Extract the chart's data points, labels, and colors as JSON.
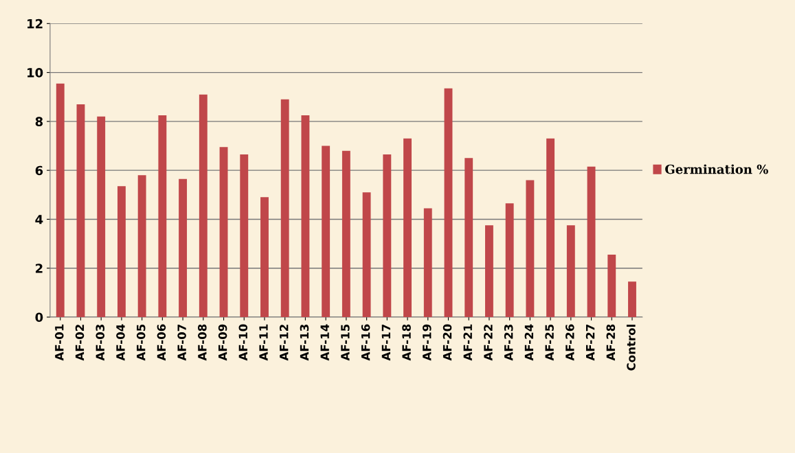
{
  "chart_data": {
    "type": "bar",
    "categories": [
      "AF-01",
      "AF-02",
      "AF-03",
      "AF-04",
      "AF-05",
      "AF-06",
      "AF-07",
      "AF-08",
      "AF-09",
      "AF-10",
      "AF-11",
      "AF-12",
      "AF-13",
      "AF-14",
      "AF-15",
      "AF-16",
      "AF-17",
      "AF-18",
      "AF-19",
      "AF-20",
      "AF-21",
      "AF-22",
      "AF-23",
      "AF-24",
      "AF-25",
      "AF-26",
      "AF-27",
      "AF-28",
      "Control"
    ],
    "series": [
      {
        "name": "Germination %",
        "color": "#c0474a",
        "values": [
          9.55,
          8.7,
          8.2,
          5.35,
          5.8,
          8.25,
          5.65,
          9.1,
          6.95,
          6.65,
          4.9,
          8.9,
          8.25,
          7.0,
          6.8,
          5.1,
          6.65,
          7.3,
          4.45,
          9.35,
          6.5,
          3.75,
          4.65,
          5.6,
          7.3,
          3.75,
          6.15,
          2.55,
          1.45
        ]
      }
    ],
    "ylim": [
      0,
      12
    ],
    "yticks": [
      0,
      2,
      4,
      6,
      8,
      10,
      12
    ],
    "grid": "y",
    "legend": "right"
  }
}
